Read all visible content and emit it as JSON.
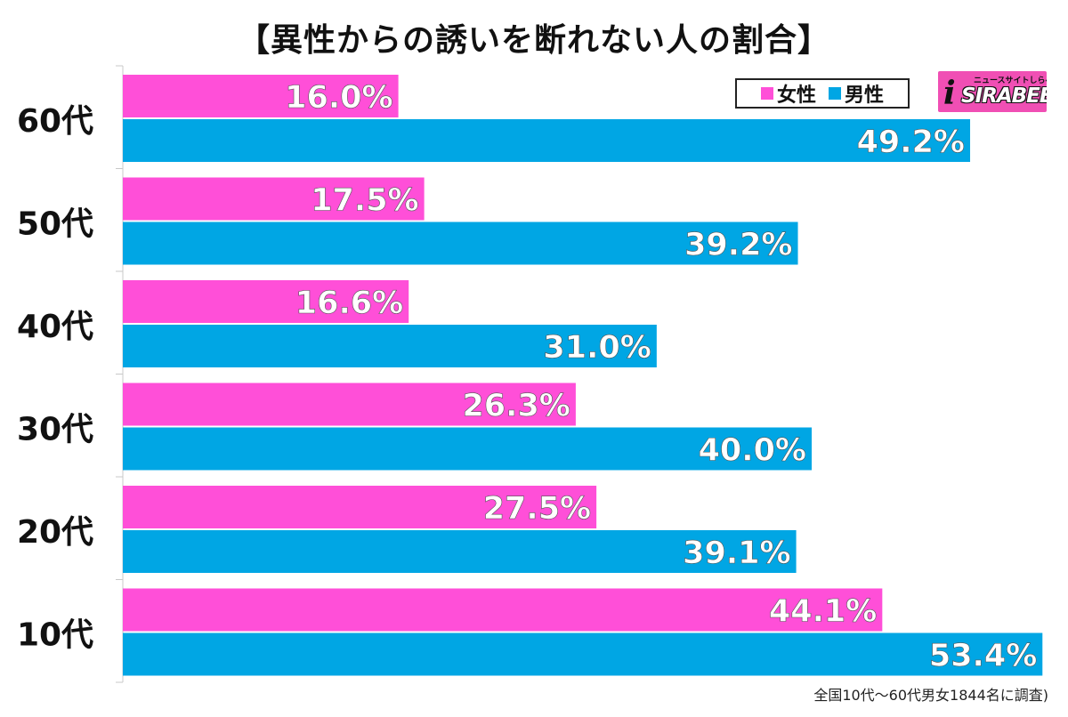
{
  "chart_data": {
    "type": "bar",
    "orientation": "horizontal",
    "title": "【異性からの誘いを断れない人の割合】",
    "categories": [
      "60代",
      "50代",
      "40代",
      "30代",
      "20代",
      "10代"
    ],
    "series": [
      {
        "name": "女性",
        "color": "#ff4fd8",
        "values": [
          16.0,
          17.5,
          16.6,
          26.3,
          27.5,
          44.1
        ]
      },
      {
        "name": "男性",
        "color": "#00a6e4",
        "values": [
          49.2,
          39.2,
          31.0,
          40.0,
          39.1,
          53.4
        ]
      }
    ],
    "value_labels": {
      "女性": [
        "16.0%",
        "17.5%",
        "16.6%",
        "26.3%",
        "27.5%",
        "44.1%"
      ],
      "男性": [
        "49.2%",
        "39.2%",
        "31.0%",
        "40.0%",
        "39.1%",
        "53.4%"
      ]
    },
    "xlim": [
      0,
      55
    ],
    "legend": "top-right",
    "footnote": "全国10代〜60代男女1844名に調査)"
  },
  "legend": {
    "female": "女性",
    "male": "男性"
  },
  "logo": {
    "main": "SIRABEE",
    "sub": "ニュースサイトしらべぇ",
    "mark": "i"
  }
}
